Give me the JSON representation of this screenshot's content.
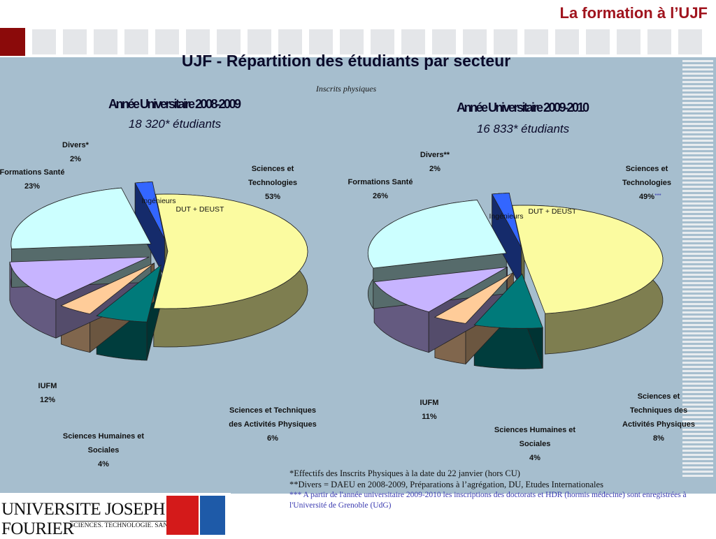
{
  "header": {
    "page_title": "La formation à l’UJF",
    "main_title": "UJF - Répartition des étudiants par secteur",
    "subtitle": "Inscrits physiques"
  },
  "chart_data": [
    {
      "type": "pie",
      "title": "Année Universitaire 2008-2009",
      "subtitle": "18 320* étudiants",
      "slices": [
        {
          "label": "Sciences et Technologies",
          "value": 53,
          "value_label": "53%",
          "color": "#fbfba0"
        },
        {
          "label": "Sciences et Techniques des Activités Physiques",
          "value": 6,
          "value_label": "6%",
          "color": "#007a7a"
        },
        {
          "label": "Sciences Humaines et Sociales",
          "value": 4,
          "value_label": "4%",
          "color": "#ffcc99"
        },
        {
          "label": "IUFM",
          "value": 12,
          "value_label": "12%",
          "color": "#c7b4ff"
        },
        {
          "label": "Formations Santé",
          "value": 23,
          "value_label": "23%",
          "color": "#ccffff"
        },
        {
          "label": "Divers*",
          "value": 2,
          "value_label": "2%",
          "color": "#3366ff"
        }
      ],
      "inner_labels": [
        "Ingénieurs",
        "DUT + DEUST"
      ]
    },
    {
      "type": "pie",
      "title": "Année Universitaire 2009-2010",
      "subtitle": "16 833* étudiants",
      "slices": [
        {
          "label": "Sciences et Technologies",
          "value": 49,
          "value_label": "49%",
          "value_suffix": "***",
          "color": "#fbfba0"
        },
        {
          "label": "Sciences et Techniques des Activités Physiques",
          "value": 8,
          "value_label": "8%",
          "color": "#007a7a"
        },
        {
          "label": "Sciences Humaines et Sociales",
          "value": 4,
          "value_label": "4%",
          "color": "#ffcc99"
        },
        {
          "label": "IUFM",
          "value": 11,
          "value_label": "11%",
          "color": "#c7b4ff"
        },
        {
          "label": "Formations Santé",
          "value": 26,
          "value_label": "26%",
          "color": "#ccffff"
        },
        {
          "label": "Divers**",
          "value": 2,
          "value_label": "2%",
          "color": "#3366ff"
        }
      ],
      "inner_labels": [
        "Ingénieurs",
        "DUT + DEUST"
      ]
    }
  ],
  "footnotes": {
    "line1": "*Effectifs des Inscrits Physiques à la date du 22 janvier (hors CU)",
    "line2": "**Divers = DAEU en 2008-2009, Préparations à l’agrégation, DU, Etudes Internationales",
    "line3": "*** A partir de l'année universitaire 2009-2010 les inscriptions des doctorats et HDR (hormis médecine) sont enregistrées à l'Université de Grenoble (UdG)"
  },
  "logo": {
    "name": "UNIVERSITE JOSEPH FOURIER",
    "tagline": "SCIENCES. TECHNOLOGIE. SANTÉ"
  }
}
